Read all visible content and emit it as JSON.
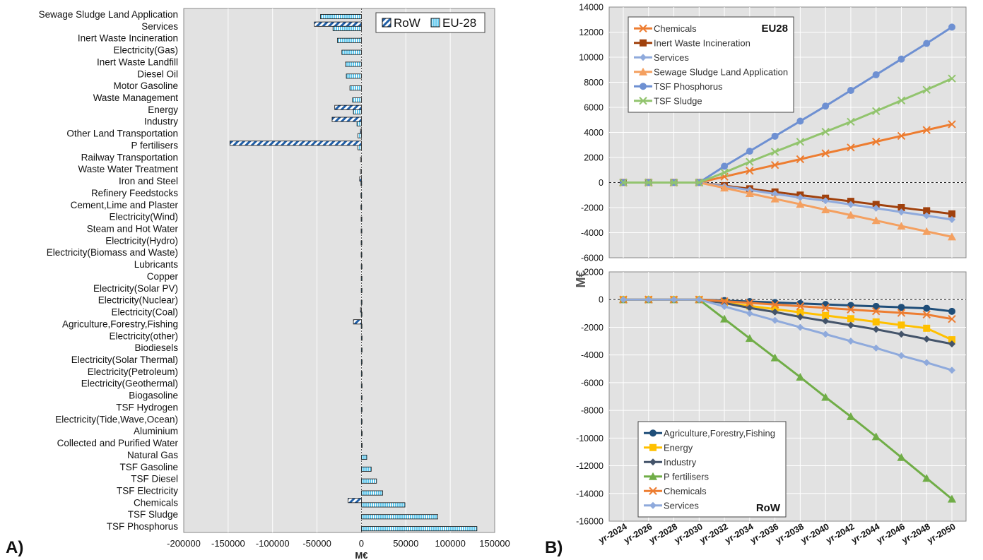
{
  "panel_labels": {
    "a": "A)",
    "b": "B)"
  },
  "chart_data": [
    {
      "type": "bar",
      "orientation": "horizontal",
      "panel": "A)",
      "title": "",
      "xlabel": "M€",
      "ylabel": "",
      "xlim": [
        -200000,
        150000
      ],
      "xticks": [
        -200000,
        -150000,
        -100000,
        -50000,
        0,
        50000,
        100000,
        150000
      ],
      "xtick_labels": [
        "-200000",
        "-150000",
        "-100000",
        "-50000",
        "0",
        "50000",
        "100000",
        "150000"
      ],
      "grid": true,
      "legend_position": "top-right",
      "categories": [
        "Sewage Sludge Land Application",
        "Services",
        "Inert Waste Incineration",
        "Electricity(Gas)",
        "Inert Waste Landfill",
        "Diesel Oil",
        "Motor Gasoline",
        "Waste Management",
        "Energy",
        "Industry",
        "Other Land Transportation",
        "P fertilisers",
        "Railway Transportation",
        "Waste Water Treatment",
        "Iron and Steel",
        "Refinery Feedstocks",
        "Cement,Lime and Plaster",
        "Electricity(Wind)",
        "Steam and Hot Water",
        "Electricity(Hydro)",
        "Electricity(Biomass and Waste)",
        "Lubricants",
        "Copper",
        "Electricity(Solar PV)",
        "Electricity(Nuclear)",
        "Electricity(Coal)",
        "Agriculture,Forestry,Fishing",
        "Electricity(other)",
        "Biodiesels",
        "Electricity(Solar Thermal)",
        "Electricity(Petroleum)",
        "Electricity(Geothermal)",
        "Biogasoline",
        "TSF Hydrogen",
        "Electricity(Tide,Wave,Ocean)",
        "Aluminium",
        "Collected and Purified Water",
        "Natural Gas",
        "TSF Gasoline",
        "TSF Diesel",
        "TSF Electricity",
        "Chemicals",
        "TSF Sludge",
        "TSF Phosphorus"
      ],
      "series": [
        {
          "name": "RoW",
          "color": "#1f5fa8",
          "pattern": "diagonal-stripes",
          "values": [
            0,
            -53000,
            0,
            0,
            0,
            0,
            0,
            0,
            -30000,
            -33000,
            -1000,
            -148000,
            0,
            0,
            -2000,
            0,
            0,
            0,
            0,
            0,
            0,
            0,
            0,
            0,
            0,
            -1000,
            -9000,
            0,
            0,
            0,
            0,
            0,
            0,
            0,
            0,
            0,
            0,
            0,
            0,
            0,
            0,
            -15000,
            0,
            0
          ]
        },
        {
          "name": "EU-28",
          "color": "#5fc8ee",
          "pattern": "vertical-stripes",
          "values": [
            -46000,
            -32000,
            -27000,
            -22000,
            -18000,
            -17000,
            -13000,
            -10000,
            -9000,
            -5000,
            -4000,
            -4000,
            -1000,
            -1000,
            -500,
            -500,
            -500,
            -300,
            -300,
            -300,
            -300,
            -200,
            -200,
            -200,
            -200,
            -200,
            -200,
            -100,
            -100,
            -100,
            -100,
            -100,
            -100,
            -100,
            -100,
            200,
            300,
            6000,
            11000,
            17000,
            24000,
            49000,
            86000,
            130000
          ]
        }
      ]
    },
    {
      "type": "line",
      "panel": "B)",
      "title": "EU28",
      "xlabel": "",
      "ylabel": "M€",
      "ylim": [
        -6000,
        14000
      ],
      "yticks": [
        -6000,
        -4000,
        -2000,
        0,
        2000,
        4000,
        6000,
        8000,
        10000,
        12000,
        14000
      ],
      "grid": true,
      "legend_position": "top-left",
      "zero_line": "dashed",
      "x": [
        "yr-2024",
        "yr-2026",
        "yr-2028",
        "yr-2030",
        "yr-2032",
        "yr-2034",
        "yr-2036",
        "yr-2038",
        "yr-2040",
        "yr-2042",
        "yr-2044",
        "yr-2046",
        "yr-2048",
        "yr-2050"
      ],
      "series": [
        {
          "name": "Chemicals",
          "color": "#ed7d31",
          "marker": "x",
          "values": [
            0,
            0,
            0,
            0,
            470,
            940,
            1400,
            1860,
            2330,
            2790,
            3260,
            3720,
            4190,
            4650
          ]
        },
        {
          "name": "Inert Waste Incineration",
          "color": "#a0410d",
          "marker": "square",
          "values": [
            0,
            0,
            0,
            0,
            -250,
            -500,
            -750,
            -1000,
            -1250,
            -1500,
            -1750,
            -2000,
            -2250,
            -2500
          ]
        },
        {
          "name": "Services",
          "color": "#8faadc",
          "marker": "diamond",
          "values": [
            0,
            0,
            0,
            0,
            -300,
            -600,
            -900,
            -1200,
            -1450,
            -1750,
            -2050,
            -2350,
            -2650,
            -2950
          ]
        },
        {
          "name": "Sewage Sludge Land Application",
          "color": "#f4a060",
          "marker": "triangle",
          "values": [
            0,
            0,
            0,
            0,
            -430,
            -870,
            -1300,
            -1730,
            -2170,
            -2600,
            -3030,
            -3470,
            -3900,
            -4330
          ]
        },
        {
          "name": "TSF Phosphorus",
          "color": "#6e90d2",
          "marker": "circle",
          "values": [
            0,
            0,
            0,
            0,
            1300,
            2500,
            3700,
            4900,
            6100,
            7350,
            8600,
            9850,
            11100,
            12400
          ]
        },
        {
          "name": "TSF Sludge",
          "color": "#92c46e",
          "marker": "x",
          "values": [
            0,
            0,
            0,
            0,
            800,
            1650,
            2450,
            3250,
            4050,
            4850,
            5700,
            6550,
            7400,
            8300
          ]
        }
      ]
    },
    {
      "type": "line",
      "panel": "B)",
      "title": "RoW",
      "xlabel": "",
      "ylabel": "M€",
      "ylim": [
        -16000,
        2000
      ],
      "yticks": [
        -16000,
        -14000,
        -12000,
        -10000,
        -8000,
        -6000,
        -4000,
        -2000,
        0,
        2000
      ],
      "grid": true,
      "legend_position": "bottom-left",
      "zero_line": "dashed",
      "x": [
        "yr-2024",
        "yr-2026",
        "yr-2028",
        "yr-2030",
        "yr-2032",
        "yr-2034",
        "yr-2036",
        "yr-2038",
        "yr-2040",
        "yr-2042",
        "yr-2044",
        "yr-2046",
        "yr-2048",
        "yr-2050"
      ],
      "series": [
        {
          "name": "Agriculture,Forestry,Fishing",
          "color": "#1f4e79",
          "marker": "circle",
          "values": [
            0,
            0,
            0,
            0,
            -70,
            -140,
            -210,
            -280,
            -350,
            -420,
            -490,
            -560,
            -630,
            -850
          ]
        },
        {
          "name": "Energy",
          "color": "#ffc000",
          "marker": "square",
          "values": [
            0,
            0,
            0,
            0,
            -230,
            -460,
            -690,
            -920,
            -1150,
            -1380,
            -1610,
            -1840,
            -2070,
            -2900
          ]
        },
        {
          "name": "Industry",
          "color": "#44546a",
          "marker": "diamond",
          "values": [
            0,
            0,
            0,
            0,
            -250,
            -600,
            -900,
            -1250,
            -1550,
            -1850,
            -2150,
            -2500,
            -2850,
            -3200
          ]
        },
        {
          "name": "P fertilisers",
          "color": "#70ad47",
          "marker": "triangle",
          "values": [
            0,
            0,
            0,
            0,
            -1400,
            -2800,
            -4200,
            -5600,
            -7050,
            -8450,
            -9900,
            -11400,
            -12900,
            -14400
          ]
        },
        {
          "name": "Chemicals",
          "color": "#ed7d31",
          "marker": "x",
          "values": [
            0,
            0,
            0,
            0,
            -120,
            -240,
            -360,
            -480,
            -600,
            -720,
            -840,
            -960,
            -1080,
            -1400
          ]
        },
        {
          "name": "Services",
          "color": "#8faadc",
          "marker": "diamond",
          "values": [
            0,
            0,
            0,
            0,
            -500,
            -1000,
            -1500,
            -2000,
            -2500,
            -3000,
            -3500,
            -4050,
            -4550,
            -5100
          ]
        }
      ]
    }
  ]
}
